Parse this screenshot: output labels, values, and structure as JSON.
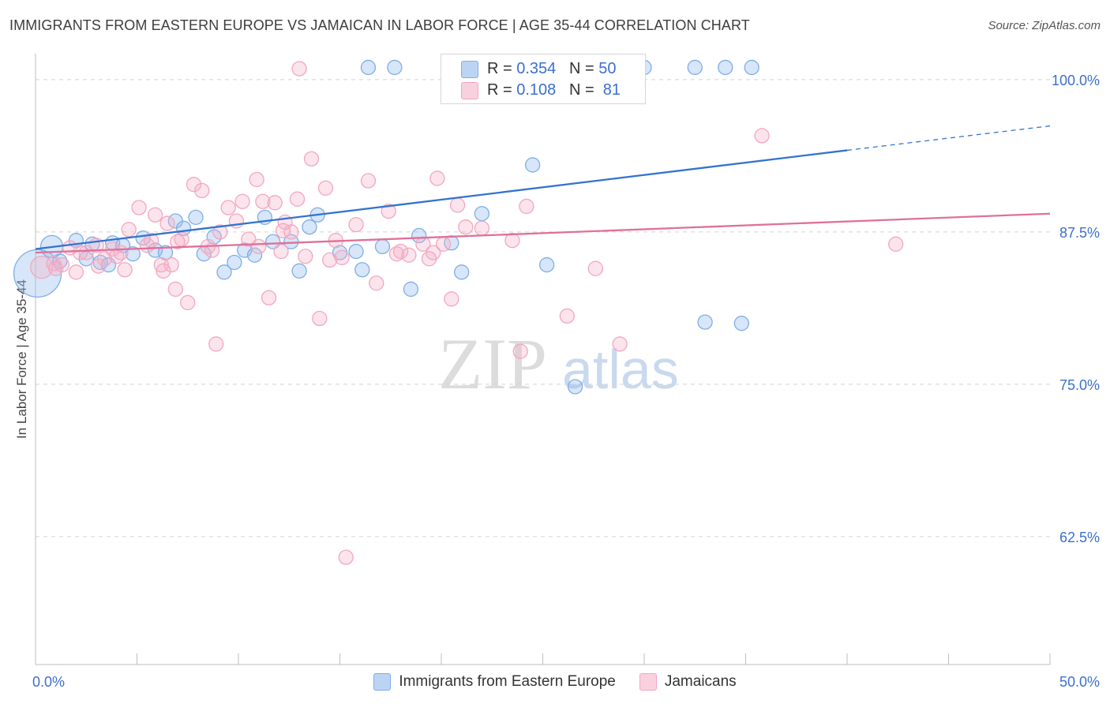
{
  "title": "IMMIGRANTS FROM EASTERN EUROPE VS JAMAICAN IN LABOR FORCE | AGE 35-44 CORRELATION CHART",
  "source": "Source: ZipAtlas.com",
  "watermark": {
    "zip": "ZIP",
    "atlas": "atlas"
  },
  "legend_top": {
    "rows": [
      {
        "r_label": "R =",
        "r_value": "0.354",
        "n_label": "N =",
        "n_value": "50",
        "color": "#7faee8"
      },
      {
        "r_label": "R =",
        "r_value": "0.108",
        "n_label": "N =",
        "n_value": "81",
        "color": "#f2a7c0"
      }
    ]
  },
  "chart_data": {
    "type": "scatter",
    "title": "IMMIGRANTS FROM EASTERN EUROPE VS JAMAICAN IN LABOR FORCE | AGE 35-44 CORRELATION CHART",
    "xlabel": "",
    "ylabel": "In Labor Force | Age 35-44",
    "xlim": [
      0,
      50
    ],
    "ylim": [
      52,
      102
    ],
    "x_tick_labels": [
      {
        "value": 0,
        "label": "0.0%"
      },
      {
        "value": 50,
        "label": "50.0%"
      }
    ],
    "y_tick_labels": [
      {
        "value": 100,
        "label": "100.0%"
      },
      {
        "value": 87.5,
        "label": "87.5%"
      },
      {
        "value": 75,
        "label": "75.0%"
      },
      {
        "value": 62.5,
        "label": "62.5%"
      }
    ],
    "grid": "horizontal-dashed",
    "legend": "bottom-center",
    "series": [
      {
        "name": "Immigrants from Eastern Europe",
        "color": "#7faee8",
        "line_color": "#3273d0",
        "trend": {
          "x": [
            0,
            40
          ],
          "y": [
            86.1,
            94.2
          ],
          "dash_x": [
            40,
            50
          ],
          "dash_y": [
            94.2,
            96.2
          ]
        },
        "points": [
          [
            0.1,
            84.1,
            30
          ],
          [
            0.8,
            86.3,
            14
          ],
          [
            1.2,
            85.1,
            9
          ],
          [
            2.0,
            86.8,
            9
          ],
          [
            2.8,
            86.5,
            9
          ],
          [
            3.2,
            85.0,
            9
          ],
          [
            3.8,
            86.6,
            9
          ],
          [
            4.3,
            86.4,
            9
          ],
          [
            4.8,
            85.7,
            9
          ],
          [
            5.3,
            87.0,
            9
          ],
          [
            5.9,
            86.0,
            9
          ],
          [
            6.4,
            85.8,
            9
          ],
          [
            6.9,
            88.4,
            9
          ],
          [
            7.3,
            87.8,
            9
          ],
          [
            7.9,
            88.7,
            9
          ],
          [
            8.3,
            85.7,
            9
          ],
          [
            8.8,
            87.1,
            9
          ],
          [
            9.3,
            84.2,
            9
          ],
          [
            9.8,
            85.0,
            9
          ],
          [
            10.3,
            86.0,
            9
          ],
          [
            10.8,
            85.6,
            9
          ],
          [
            11.3,
            88.7,
            9
          ],
          [
            11.7,
            86.7,
            9
          ],
          [
            12.6,
            86.7,
            9
          ],
          [
            13.0,
            84.3,
            9
          ],
          [
            13.5,
            87.9,
            9
          ],
          [
            13.9,
            88.9,
            9
          ],
          [
            15.0,
            85.8,
            9
          ],
          [
            15.8,
            85.9,
            9
          ],
          [
            16.1,
            84.4,
            9
          ],
          [
            16.4,
            101.0,
            9
          ],
          [
            17.1,
            86.3,
            9
          ],
          [
            17.7,
            101.0,
            9
          ],
          [
            18.5,
            82.8,
            9
          ],
          [
            18.9,
            87.2,
            9
          ],
          [
            20.5,
            86.6,
            9
          ],
          [
            21.0,
            84.2,
            9
          ],
          [
            22.0,
            89.0,
            9
          ],
          [
            24.5,
            93.0,
            9
          ],
          [
            25.2,
            84.8,
            9
          ],
          [
            26.6,
            74.8,
            9
          ],
          [
            27.0,
            101.0,
            9
          ],
          [
            30.0,
            101.0,
            9
          ],
          [
            32.5,
            101.0,
            9
          ],
          [
            33.0,
            80.1,
            9
          ],
          [
            34.0,
            101.0,
            9
          ],
          [
            34.8,
            80.0,
            9
          ],
          [
            35.3,
            101.0,
            9
          ],
          [
            3.6,
            84.8,
            9
          ],
          [
            2.5,
            85.3,
            9
          ]
        ]
      },
      {
        "name": "Jamaicans",
        "color": "#f2a7c0",
        "line_color": "#e0709a",
        "trend": {
          "x": [
            0,
            50
          ],
          "y": [
            85.8,
            89.0
          ]
        },
        "points": [
          [
            0.3,
            84.6,
            14
          ],
          [
            0.9,
            84.9,
            9
          ],
          [
            1.3,
            84.8,
            9
          ],
          [
            1.7,
            86.2,
            9
          ],
          [
            2.0,
            84.2,
            9
          ],
          [
            2.5,
            85.8,
            9
          ],
          [
            3.0,
            86.4,
            9
          ],
          [
            3.4,
            85.3,
            9
          ],
          [
            3.8,
            86.1,
            9
          ],
          [
            4.2,
            85.8,
            9
          ],
          [
            4.4,
            84.4,
            9
          ],
          [
            4.6,
            87.7,
            9
          ],
          [
            5.1,
            89.5,
            9
          ],
          [
            5.5,
            86.4,
            9
          ],
          [
            5.9,
            88.9,
            9
          ],
          [
            6.2,
            84.8,
            9
          ],
          [
            6.5,
            88.2,
            9
          ],
          [
            6.7,
            84.8,
            9
          ],
          [
            6.9,
            82.8,
            9
          ],
          [
            7.2,
            86.9,
            9
          ],
          [
            7.5,
            81.7,
            9
          ],
          [
            7.8,
            91.4,
            9
          ],
          [
            8.2,
            90.9,
            9
          ],
          [
            8.5,
            86.3,
            9
          ],
          [
            8.9,
            78.3,
            9
          ],
          [
            9.1,
            87.5,
            9
          ],
          [
            9.5,
            89.5,
            9
          ],
          [
            9.9,
            88.4,
            9
          ],
          [
            10.2,
            90.0,
            9
          ],
          [
            10.5,
            86.9,
            9
          ],
          [
            10.9,
            91.8,
            9
          ],
          [
            11.2,
            90.0,
            9
          ],
          [
            11.5,
            82.1,
            9
          ],
          [
            11.8,
            89.9,
            9
          ],
          [
            12.1,
            85.9,
            9
          ],
          [
            12.3,
            88.3,
            9
          ],
          [
            12.6,
            87.5,
            9
          ],
          [
            12.9,
            90.2,
            9
          ],
          [
            13.0,
            100.9,
            9
          ],
          [
            13.3,
            85.5,
            9
          ],
          [
            13.6,
            93.5,
            9
          ],
          [
            14.0,
            80.4,
            9
          ],
          [
            14.3,
            91.1,
            9
          ],
          [
            14.8,
            86.8,
            9
          ],
          [
            15.1,
            85.4,
            9
          ],
          [
            15.3,
            60.8,
            9
          ],
          [
            15.8,
            88.1,
            9
          ],
          [
            16.4,
            91.7,
            9
          ],
          [
            16.8,
            83.3,
            9
          ],
          [
            17.4,
            89.2,
            9
          ],
          [
            17.8,
            85.7,
            9
          ],
          [
            18.0,
            85.9,
            9
          ],
          [
            19.1,
            86.5,
            9
          ],
          [
            19.6,
            85.8,
            9
          ],
          [
            19.8,
            91.9,
            9
          ],
          [
            20.1,
            86.5,
            9
          ],
          [
            20.5,
            82.0,
            9
          ],
          [
            20.8,
            89.7,
            9
          ],
          [
            21.2,
            87.9,
            9
          ],
          [
            22.0,
            87.8,
            9
          ],
          [
            23.5,
            86.8,
            9
          ],
          [
            23.9,
            77.7,
            9
          ],
          [
            24.2,
            89.6,
            9
          ],
          [
            26.2,
            80.6,
            9
          ],
          [
            27.6,
            84.5,
            9
          ],
          [
            28.8,
            78.3,
            9
          ],
          [
            35.8,
            95.4,
            9
          ],
          [
            42.4,
            86.5,
            9
          ],
          [
            1.0,
            84.5,
            9
          ],
          [
            2.2,
            85.8,
            9
          ],
          [
            3.1,
            84.7,
            9
          ],
          [
            4.0,
            85.5,
            9
          ],
          [
            5.7,
            86.8,
            9
          ],
          [
            6.3,
            84.3,
            9
          ],
          [
            7.0,
            86.7,
            9
          ],
          [
            8.7,
            86.0,
            9
          ],
          [
            11.0,
            86.3,
            9
          ],
          [
            12.2,
            87.6,
            9
          ],
          [
            14.5,
            85.2,
            9
          ],
          [
            18.4,
            85.6,
            9
          ],
          [
            19.4,
            85.3,
            9
          ]
        ]
      }
    ]
  },
  "legend_bottom": [
    {
      "label": "Immigrants from Eastern Europe",
      "color": "#7faee8"
    },
    {
      "label": "Jamaicans",
      "color": "#f2a7c0"
    }
  ]
}
